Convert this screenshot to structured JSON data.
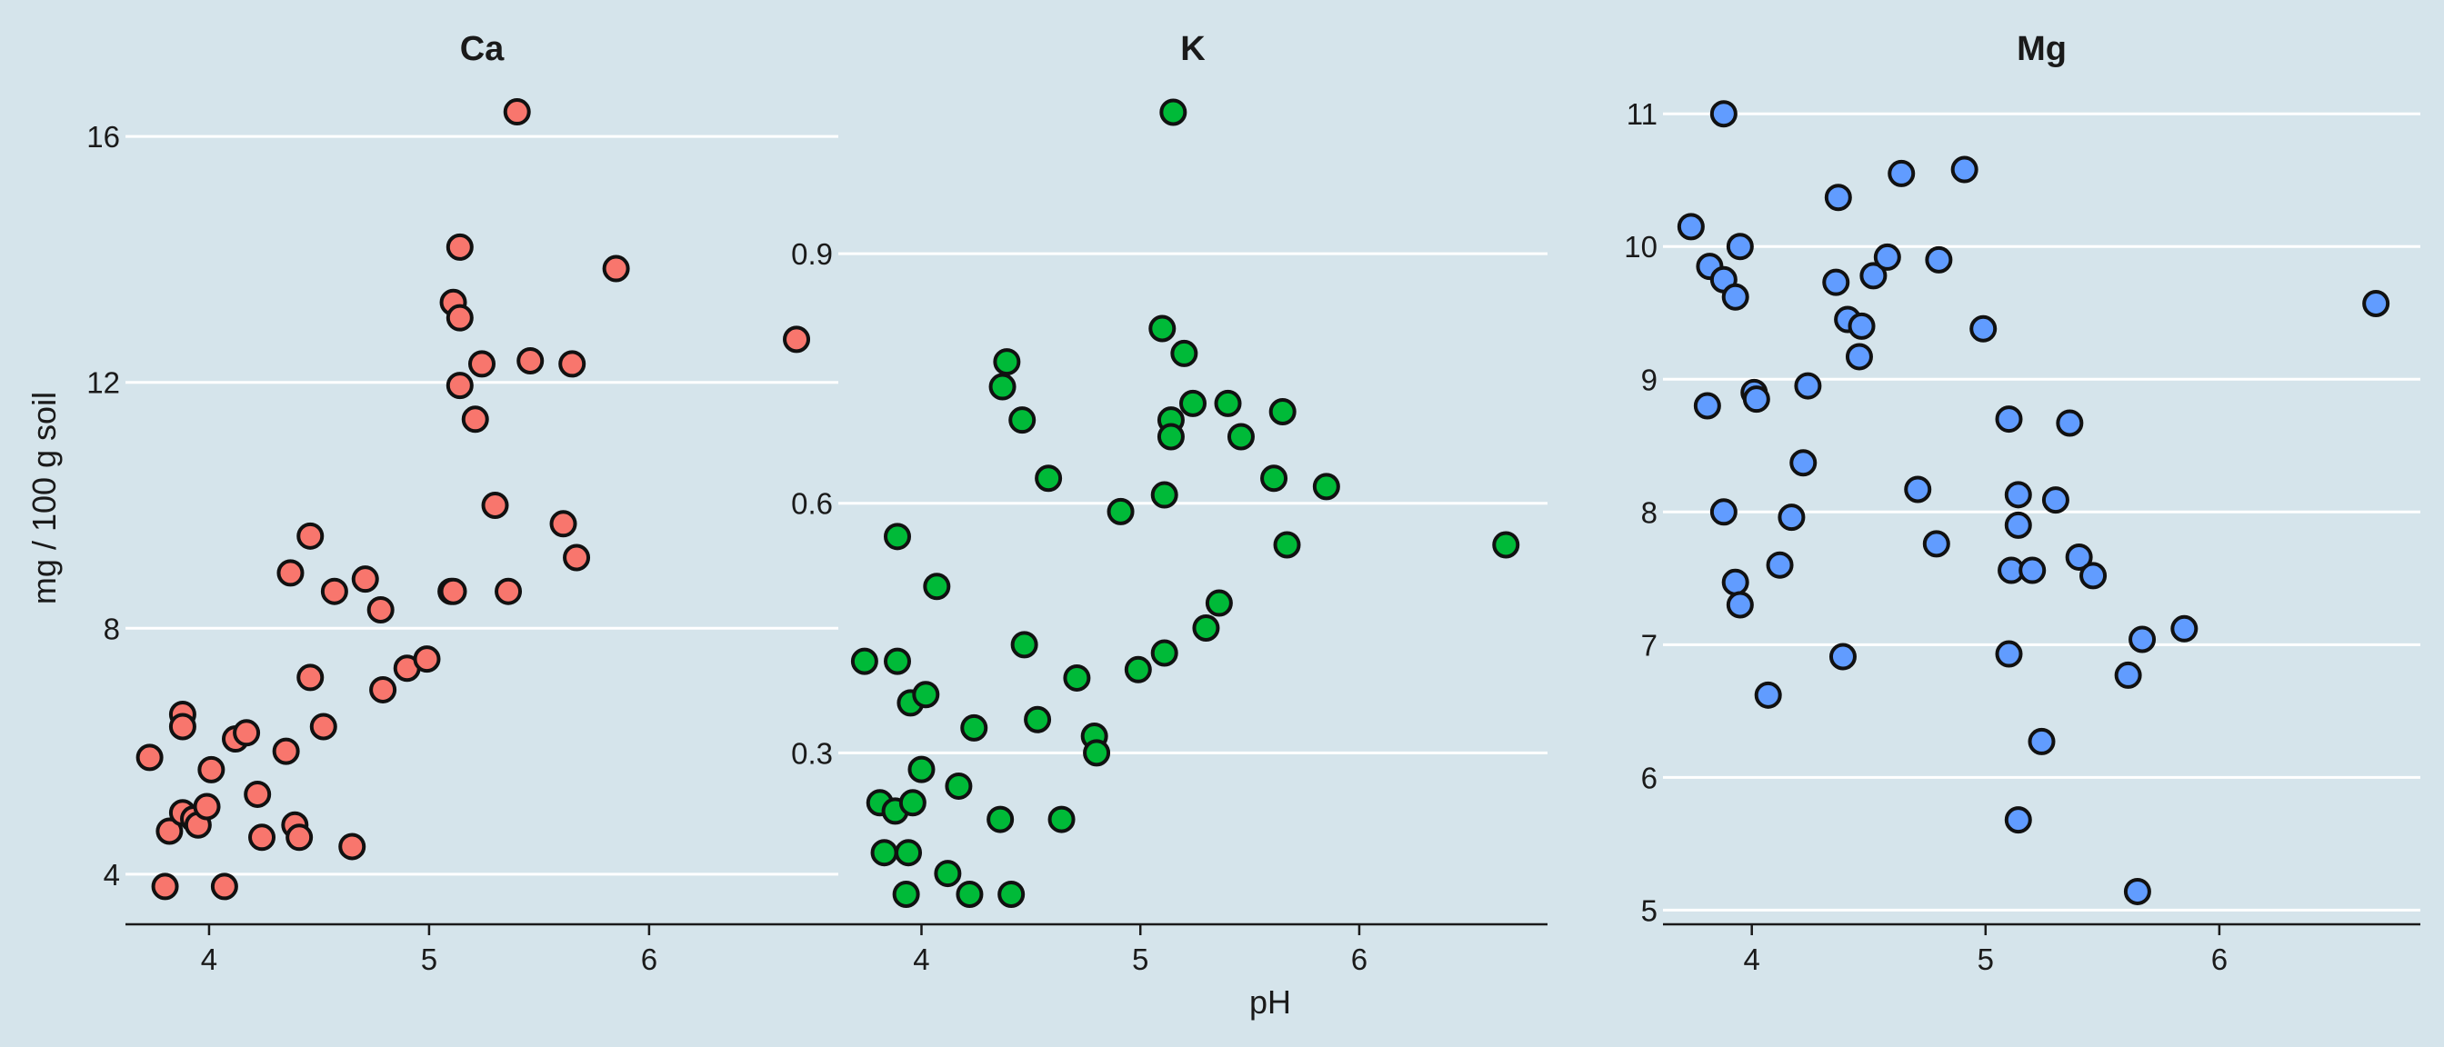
{
  "figure": {
    "background": "#d5e4eb",
    "xlabel": "pH",
    "ylabel": "mg / 100 g soil"
  },
  "chart_data": [
    {
      "type": "scatter",
      "title": "Ca",
      "color": "#f8766d",
      "xlim": [
        3.62,
        6.86
      ],
      "ylim": [
        3.2,
        16.8
      ],
      "xticks": [
        "4",
        "5",
        "6"
      ],
      "yticks": [
        "4",
        "8",
        "12",
        "16"
      ],
      "grid": "horizontal",
      "points": [
        {
          "x": 3.73,
          "y": 5.9
        },
        {
          "x": 3.8,
          "y": 3.8
        },
        {
          "x": 3.82,
          "y": 4.7
        },
        {
          "x": 3.88,
          "y": 6.6
        },
        {
          "x": 3.88,
          "y": 6.4
        },
        {
          "x": 3.88,
          "y": 5.0
        },
        {
          "x": 3.93,
          "y": 4.9
        },
        {
          "x": 3.95,
          "y": 4.8
        },
        {
          "x": 3.99,
          "y": 5.1
        },
        {
          "x": 4.01,
          "y": 5.7
        },
        {
          "x": 4.07,
          "y": 3.8
        },
        {
          "x": 4.12,
          "y": 6.2
        },
        {
          "x": 4.17,
          "y": 6.3
        },
        {
          "x": 4.22,
          "y": 5.3
        },
        {
          "x": 4.24,
          "y": 4.6
        },
        {
          "x": 4.35,
          "y": 6.0
        },
        {
          "x": 4.37,
          "y": 8.9
        },
        {
          "x": 4.39,
          "y": 4.8
        },
        {
          "x": 4.41,
          "y": 4.6
        },
        {
          "x": 4.46,
          "y": 9.5
        },
        {
          "x": 4.46,
          "y": 7.2
        },
        {
          "x": 4.52,
          "y": 6.4
        },
        {
          "x": 4.57,
          "y": 8.6
        },
        {
          "x": 4.65,
          "y": 4.45
        },
        {
          "x": 4.71,
          "y": 8.8
        },
        {
          "x": 4.78,
          "y": 8.3
        },
        {
          "x": 4.79,
          "y": 7.0
        },
        {
          "x": 4.9,
          "y": 7.35
        },
        {
          "x": 4.99,
          "y": 7.5
        },
        {
          "x": 5.1,
          "y": 8.6
        },
        {
          "x": 5.11,
          "y": 8.6
        },
        {
          "x": 5.11,
          "y": 13.3
        },
        {
          "x": 5.14,
          "y": 14.2
        },
        {
          "x": 5.14,
          "y": 13.05
        },
        {
          "x": 5.14,
          "y": 11.95
        },
        {
          "x": 5.21,
          "y": 11.4
        },
        {
          "x": 5.24,
          "y": 12.3
        },
        {
          "x": 5.3,
          "y": 10.0
        },
        {
          "x": 5.36,
          "y": 8.6
        },
        {
          "x": 5.4,
          "y": 16.4
        },
        {
          "x": 5.46,
          "y": 12.35
        },
        {
          "x": 5.61,
          "y": 9.7
        },
        {
          "x": 5.65,
          "y": 12.3
        },
        {
          "x": 5.67,
          "y": 9.15
        },
        {
          "x": 5.85,
          "y": 13.85
        },
        {
          "x": 6.67,
          "y": 12.7
        }
      ]
    },
    {
      "type": "scatter",
      "title": "K",
      "color": "#00ba38",
      "xlim": [
        3.62,
        6.86
      ],
      "ylim": [
        0.095,
        1.1
      ],
      "xticks": [
        "4",
        "5",
        "6"
      ],
      "yticks": [
        "0.3",
        "0.6",
        "0.9"
      ],
      "grid": "horizontal",
      "points": [
        {
          "x": 3.74,
          "y": 0.41
        },
        {
          "x": 3.81,
          "y": 0.24
        },
        {
          "x": 3.83,
          "y": 0.18
        },
        {
          "x": 3.88,
          "y": 0.23
        },
        {
          "x": 3.89,
          "y": 0.56
        },
        {
          "x": 3.89,
          "y": 0.41
        },
        {
          "x": 3.93,
          "y": 0.13
        },
        {
          "x": 3.94,
          "y": 0.18
        },
        {
          "x": 3.95,
          "y": 0.36
        },
        {
          "x": 3.96,
          "y": 0.24
        },
        {
          "x": 4.0,
          "y": 0.28
        },
        {
          "x": 4.02,
          "y": 0.37
        },
        {
          "x": 4.07,
          "y": 0.5
        },
        {
          "x": 4.12,
          "y": 0.155
        },
        {
          "x": 4.17,
          "y": 0.26
        },
        {
          "x": 4.22,
          "y": 0.13
        },
        {
          "x": 4.24,
          "y": 0.33
        },
        {
          "x": 4.36,
          "y": 0.22
        },
        {
          "x": 4.37,
          "y": 0.74
        },
        {
          "x": 4.39,
          "y": 0.77
        },
        {
          "x": 4.41,
          "y": 0.13
        },
        {
          "x": 4.46,
          "y": 0.7
        },
        {
          "x": 4.47,
          "y": 0.43
        },
        {
          "x": 4.53,
          "y": 0.34
        },
        {
          "x": 4.58,
          "y": 0.63
        },
        {
          "x": 4.64,
          "y": 0.22
        },
        {
          "x": 4.71,
          "y": 0.39
        },
        {
          "x": 4.79,
          "y": 0.32
        },
        {
          "x": 4.8,
          "y": 0.3
        },
        {
          "x": 4.91,
          "y": 0.59
        },
        {
          "x": 4.99,
          "y": 0.4
        },
        {
          "x": 5.1,
          "y": 0.81
        },
        {
          "x": 5.11,
          "y": 0.61
        },
        {
          "x": 5.11,
          "y": 0.42
        },
        {
          "x": 5.14,
          "y": 0.7
        },
        {
          "x": 5.14,
          "y": 0.68
        },
        {
          "x": 5.15,
          "y": 1.07
        },
        {
          "x": 5.2,
          "y": 0.78
        },
        {
          "x": 5.24,
          "y": 0.72
        },
        {
          "x": 5.3,
          "y": 0.45
        },
        {
          "x": 5.36,
          "y": 0.48
        },
        {
          "x": 5.4,
          "y": 0.72
        },
        {
          "x": 5.46,
          "y": 0.68
        },
        {
          "x": 5.61,
          "y": 0.63
        },
        {
          "x": 5.65,
          "y": 0.71
        },
        {
          "x": 5.67,
          "y": 0.55
        },
        {
          "x": 5.85,
          "y": 0.62
        },
        {
          "x": 6.67,
          "y": 0.55
        }
      ]
    },
    {
      "type": "scatter",
      "title": "Mg",
      "color": "#619cff",
      "xlim": [
        3.62,
        6.86
      ],
      "ylim": [
        4.9,
        11.2
      ],
      "xticks": [
        "4",
        "5",
        "6"
      ],
      "yticks": [
        "5",
        "6",
        "7",
        "8",
        "9",
        "10",
        "11"
      ],
      "grid": "horizontal",
      "points": [
        {
          "x": 3.74,
          "y": 10.15
        },
        {
          "x": 3.81,
          "y": 8.8
        },
        {
          "x": 3.82,
          "y": 9.85
        },
        {
          "x": 3.88,
          "y": 11.0
        },
        {
          "x": 3.88,
          "y": 9.75
        },
        {
          "x": 3.88,
          "y": 8.0
        },
        {
          "x": 3.93,
          "y": 9.62
        },
        {
          "x": 3.93,
          "y": 7.47
        },
        {
          "x": 3.95,
          "y": 10.0
        },
        {
          "x": 3.95,
          "y": 7.3
        },
        {
          "x": 4.01,
          "y": 8.9
        },
        {
          "x": 4.02,
          "y": 8.85
        },
        {
          "x": 4.07,
          "y": 6.62
        },
        {
          "x": 4.12,
          "y": 7.6
        },
        {
          "x": 4.17,
          "y": 7.96
        },
        {
          "x": 4.22,
          "y": 8.37
        },
        {
          "x": 4.24,
          "y": 8.95
        },
        {
          "x": 4.36,
          "y": 9.73
        },
        {
          "x": 4.37,
          "y": 10.37
        },
        {
          "x": 4.39,
          "y": 6.91
        },
        {
          "x": 4.41,
          "y": 9.45
        },
        {
          "x": 4.46,
          "y": 9.17
        },
        {
          "x": 4.47,
          "y": 9.4
        },
        {
          "x": 4.52,
          "y": 9.78
        },
        {
          "x": 4.58,
          "y": 9.92
        },
        {
          "x": 4.64,
          "y": 10.55
        },
        {
          "x": 4.71,
          "y": 8.17
        },
        {
          "x": 4.79,
          "y": 7.76
        },
        {
          "x": 4.8,
          "y": 9.9
        },
        {
          "x": 4.91,
          "y": 10.58
        },
        {
          "x": 4.99,
          "y": 9.38
        },
        {
          "x": 5.1,
          "y": 8.7
        },
        {
          "x": 5.1,
          "y": 6.93
        },
        {
          "x": 5.11,
          "y": 7.56
        },
        {
          "x": 5.14,
          "y": 8.13
        },
        {
          "x": 5.14,
          "y": 7.9
        },
        {
          "x": 5.14,
          "y": 5.68
        },
        {
          "x": 5.2,
          "y": 7.56
        },
        {
          "x": 5.24,
          "y": 6.27
        },
        {
          "x": 5.3,
          "y": 8.09
        },
        {
          "x": 5.36,
          "y": 8.67
        },
        {
          "x": 5.4,
          "y": 7.66
        },
        {
          "x": 5.46,
          "y": 7.52
        },
        {
          "x": 5.61,
          "y": 6.77
        },
        {
          "x": 5.65,
          "y": 5.14
        },
        {
          "x": 5.67,
          "y": 7.04
        },
        {
          "x": 5.85,
          "y": 7.12
        },
        {
          "x": 6.67,
          "y": 9.57
        }
      ]
    }
  ]
}
